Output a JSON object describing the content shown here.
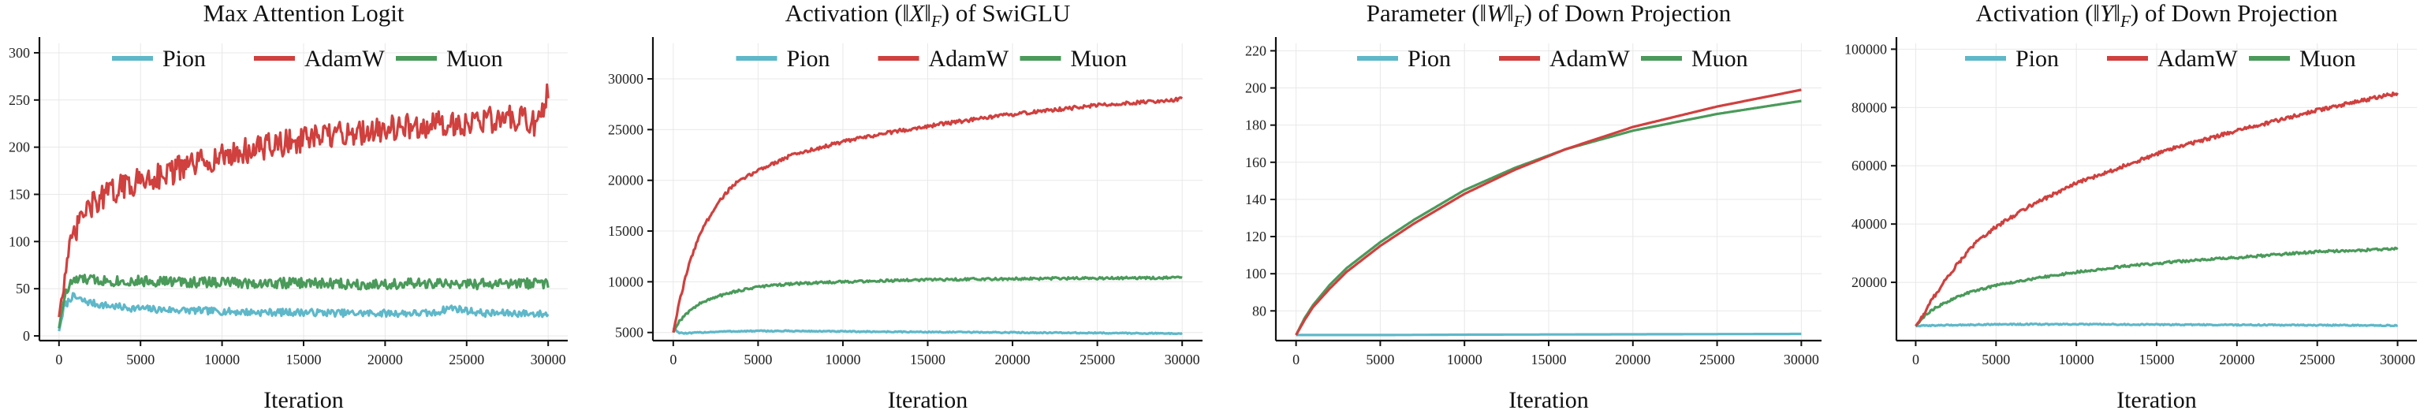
{
  "colors": {
    "Pion": "#5eb8c9",
    "AdamW": "#d0403e",
    "Muon": "#4a9a5a"
  },
  "chart_data": [
    {
      "type": "line",
      "title": "Max Attention Logit",
      "xlabel": "Iteration",
      "ylabel": "",
      "xlim": [
        -1200,
        31200
      ],
      "ylim": [
        -5,
        310
      ],
      "xticks": [
        0,
        5000,
        10000,
        15000,
        20000,
        25000,
        30000
      ],
      "yticks": [
        0,
        50,
        100,
        150,
        200,
        250,
        300
      ],
      "grid": true,
      "legend": "top",
      "series": [
        {
          "name": "Pion",
          "x": [
            0,
            300,
            800,
            1500,
            2500,
            4000,
            6000,
            8000,
            10000,
            12000,
            15000,
            18000,
            21000,
            23000,
            24000,
            26000,
            28000,
            30000
          ],
          "values": [
            5,
            30,
            42,
            37,
            33,
            30,
            28,
            27,
            26,
            25,
            25,
            24,
            24,
            24,
            30,
            24,
            24,
            23
          ]
        },
        {
          "name": "AdamW",
          "x": [
            0,
            300,
            800,
            1500,
            2500,
            3500,
            5000,
            6500,
            8000,
            10000,
            12000,
            14000,
            16000,
            18000,
            20000,
            22000,
            24000,
            26000,
            28000,
            29500,
            30000
          ],
          "values": [
            20,
            60,
            100,
            130,
            145,
            155,
            165,
            172,
            180,
            190,
            198,
            205,
            210,
            215,
            220,
            222,
            225,
            228,
            230,
            225,
            258
          ]
        },
        {
          "name": "Muon",
          "x": [
            0,
            300,
            800,
            1500,
            2500,
            4000,
            6000,
            8000,
            10000,
            12000,
            15000,
            18000,
            21000,
            24000,
            27000,
            30000
          ],
          "values": [
            8,
            40,
            58,
            60,
            59,
            58,
            58,
            57,
            57,
            56,
            56,
            55,
            55,
            55,
            55,
            56
          ]
        }
      ]
    },
    {
      "type": "line",
      "title": "Activation (‖X‖_F) of SwiGLU",
      "xlabel": "Iteration",
      "ylabel": "",
      "xlim": [
        -1200,
        31200
      ],
      "ylim": [
        4200,
        33500
      ],
      "xticks": [
        0,
        5000,
        10000,
        15000,
        20000,
        25000,
        30000
      ],
      "yticks": [
        5000,
        10000,
        15000,
        20000,
        25000,
        30000
      ],
      "grid": true,
      "legend": "top",
      "series": [
        {
          "name": "Pion",
          "x": [
            0,
            300,
            800,
            1500,
            3000,
            5000,
            7000,
            10000,
            15000,
            20000,
            25000,
            30000
          ],
          "values": [
            5500,
            5000,
            4900,
            5000,
            5100,
            5150,
            5150,
            5100,
            5050,
            5000,
            4950,
            4900
          ]
        },
        {
          "name": "AdamW",
          "x": [
            0,
            300,
            800,
            1500,
            2500,
            3500,
            5000,
            7000,
            10000,
            13000,
            16000,
            20000,
            25000,
            30000
          ],
          "values": [
            5000,
            7500,
            11000,
            14500,
            17500,
            19500,
            21000,
            22500,
            23800,
            24800,
            25600,
            26500,
            27400,
            28000
          ]
        },
        {
          "name": "Muon",
          "x": [
            0,
            300,
            800,
            1500,
            2500,
            3500,
            5000,
            7000,
            10000,
            15000,
            20000,
            25000,
            30000
          ],
          "values": [
            5000,
            6000,
            6900,
            7800,
            8500,
            9000,
            9500,
            9800,
            10000,
            10200,
            10300,
            10350,
            10400
          ]
        }
      ]
    },
    {
      "type": "line",
      "title": "Parameter (‖W‖_F) of Down Projection",
      "xlabel": "Iteration",
      "ylabel": "",
      "xlim": [
        -1200,
        31200
      ],
      "ylim": [
        64,
        224
      ],
      "xticks": [
        0,
        5000,
        10000,
        15000,
        20000,
        25000,
        30000
      ],
      "yticks": [
        80,
        100,
        120,
        140,
        160,
        180,
        200,
        220
      ],
      "grid": true,
      "legend": "top",
      "series": [
        {
          "name": "Pion",
          "x": [
            0,
            5000,
            10000,
            15000,
            20000,
            25000,
            30000
          ],
          "values": [
            67,
            67,
            67.2,
            67.3,
            67.4,
            67.5,
            67.6
          ]
        },
        {
          "name": "AdamW",
          "x": [
            0,
            500,
            1000,
            2000,
            3000,
            5000,
            7000,
            10000,
            13000,
            16000,
            20000,
            25000,
            30000
          ],
          "values": [
            67,
            75,
            82,
            92,
            101,
            115,
            127,
            143,
            156,
            167,
            179,
            190,
            199
          ]
        },
        {
          "name": "Muon",
          "x": [
            0,
            500,
            1000,
            2000,
            3000,
            5000,
            7000,
            10000,
            13000,
            16000,
            20000,
            25000,
            30000
          ],
          "values": [
            67,
            76,
            83,
            94,
            103,
            117,
            129,
            145,
            157,
            167,
            177,
            186,
            193
          ]
        }
      ]
    },
    {
      "type": "line",
      "title": "Activation (‖Y‖_F) of Down Projection",
      "xlabel": "Iteration",
      "ylabel": "",
      "xlim": [
        -1200,
        31200
      ],
      "ylim": [
        0,
        102000
      ],
      "xticks": [
        0,
        5000,
        10000,
        15000,
        20000,
        25000,
        30000
      ],
      "yticks": [
        20000,
        40000,
        60000,
        80000,
        100000
      ],
      "grid": true,
      "legend": "top",
      "series": [
        {
          "name": "Pion",
          "x": [
            0,
            1000,
            3000,
            5000,
            10000,
            15000,
            20000,
            25000,
            30000
          ],
          "values": [
            5000,
            5200,
            5400,
            5600,
            5600,
            5500,
            5400,
            5300,
            5200
          ]
        },
        {
          "name": "AdamW",
          "x": [
            0,
            500,
            1000,
            2000,
            3000,
            4000,
            5000,
            7000,
            10000,
            13000,
            16000,
            20000,
            25000,
            30000
          ],
          "values": [
            5000,
            9000,
            14000,
            22000,
            29000,
            35000,
            39000,
            46000,
            54000,
            60000,
            66000,
            72000,
            79000,
            85000
          ]
        },
        {
          "name": "Muon",
          "x": [
            0,
            500,
            1000,
            2000,
            3000,
            4000,
            5000,
            7000,
            10000,
            13000,
            16000,
            20000,
            25000,
            30000
          ],
          "values": [
            5000,
            8000,
            10500,
            13500,
            16000,
            17500,
            19000,
            21000,
            23500,
            25500,
            27000,
            28500,
            30500,
            31500
          ]
        }
      ]
    }
  ]
}
